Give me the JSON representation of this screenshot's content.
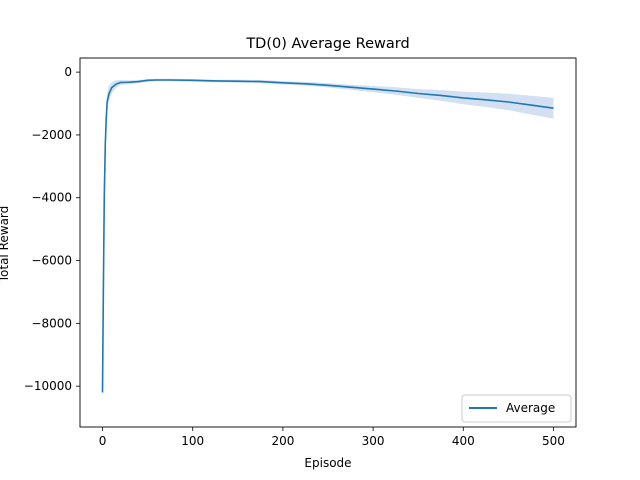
{
  "chart_data": {
    "type": "line",
    "title": "TD(0) Average Reward",
    "xlabel": "Episode",
    "ylabel": "Total Reward",
    "xlim": [
      -25,
      525
    ],
    "ylim": [
      -11300,
      450
    ],
    "x_ticks": [
      0,
      100,
      200,
      300,
      400,
      500
    ],
    "y_ticks": [
      0,
      -2000,
      -4000,
      -6000,
      -8000,
      -10000
    ],
    "grid": false,
    "legend": {
      "position": "lower-right",
      "entries": [
        "Average"
      ]
    },
    "series": [
      {
        "name": "Average",
        "color": "#1f77b4",
        "band_color": "#aec7e8",
        "x": [
          0,
          1,
          2,
          3,
          4,
          5,
          7,
          10,
          15,
          20,
          30,
          40,
          50,
          60,
          75,
          100,
          125,
          150,
          175,
          200,
          225,
          250,
          275,
          300,
          325,
          350,
          375,
          400,
          425,
          450,
          475,
          500
        ],
        "y": [
          -10200,
          -6800,
          -3900,
          -2300,
          -1500,
          -950,
          -700,
          -500,
          -380,
          -330,
          -320,
          -300,
          -260,
          -250,
          -250,
          -260,
          -280,
          -290,
          -300,
          -340,
          -370,
          -420,
          -480,
          -540,
          -600,
          -680,
          -740,
          -820,
          -880,
          -950,
          -1050,
          -1150
        ],
        "band": [
          200,
          250,
          300,
          300,
          300,
          300,
          250,
          180,
          120,
          80,
          60,
          50,
          40,
          40,
          40,
          40,
          40,
          45,
          50,
          55,
          60,
          70,
          80,
          100,
          120,
          140,
          170,
          200,
          230,
          260,
          300,
          330
        ]
      }
    ]
  }
}
